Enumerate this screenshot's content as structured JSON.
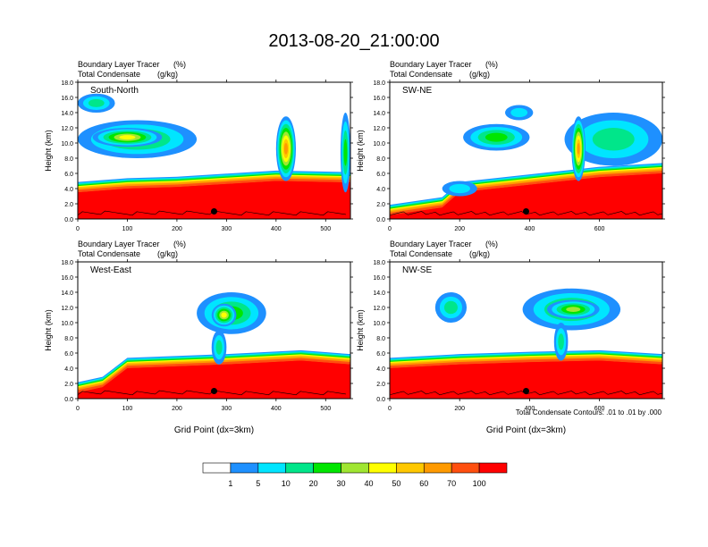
{
  "figure": {
    "title": "2013-08-20_21:00:00",
    "contour_note": "Total Condensate Contours: .01 to .01 by .000",
    "bottom_xlabel": "Grid Point (dx=3km)"
  },
  "colorbar": {
    "colors": [
      "#ffffff",
      "#1e90ff",
      "#00e5ff",
      "#00e68a",
      "#00e600",
      "#a0e632",
      "#ffff00",
      "#ffc800",
      "#ff9a00",
      "#ff4f0f",
      "#ff0000"
    ],
    "labels": [
      "1",
      "5",
      "10",
      "20",
      "30",
      "40",
      "50",
      "60",
      "70",
      "100"
    ]
  },
  "chart_data": [
    {
      "type": "heatmap",
      "panel_label": "South-North",
      "title_left_1": "Boundary Layer Tracer",
      "title_unit_1": "(%)",
      "title_left_2": "Total Condensate",
      "title_unit_2": "(g/kg)",
      "ylabel": "Height (km)",
      "xlabel": "",
      "xlim": [
        0,
        550
      ],
      "ylim": [
        0,
        18
      ],
      "xticks": [
        0,
        100,
        200,
        300,
        400,
        500
      ],
      "yticks": [
        "0.0",
        "2.0",
        "4.0",
        "6.0",
        "8.0",
        "10.0",
        "12.0",
        "14.0",
        "16.0",
        "18.0"
      ],
      "marker_x": 275,
      "marker_y": 1.0,
      "pbl_top": [
        [
          0,
          3.5
        ],
        [
          100,
          4.0
        ],
        [
          200,
          4.2
        ],
        [
          300,
          4.6
        ],
        [
          400,
          5.0
        ],
        [
          550,
          4.8
        ]
      ],
      "clouds": [
        {
          "x0": 0,
          "x1": 75,
          "y0": 14.0,
          "y1": 16.5,
          "level": 3
        },
        {
          "x0": 0,
          "x1": 240,
          "y0": 8.0,
          "y1": 13.0,
          "level": 4
        },
        {
          "x0": 30,
          "x1": 170,
          "y0": 9.5,
          "y1": 12.0,
          "level": 6
        },
        {
          "x0": 400,
          "x1": 440,
          "y0": 5.0,
          "y1": 13.5,
          "level": 8
        },
        {
          "x0": 530,
          "x1": 550,
          "y0": 3.5,
          "y1": 14.0,
          "level": 4
        }
      ]
    },
    {
      "type": "heatmap",
      "panel_label": "SW-NE",
      "title_left_1": "Boundary Layer Tracer",
      "title_unit_1": "(%)",
      "title_left_2": "Total Condensate",
      "title_unit_2": "(g/kg)",
      "ylabel": "Height (km)",
      "xlabel": "",
      "xlim": [
        0,
        780
      ],
      "ylim": [
        0,
        18
      ],
      "xticks": [
        0,
        200,
        400,
        600
      ],
      "yticks": [
        "0.0",
        "2.0",
        "4.0",
        "6.0",
        "8.0",
        "10.0",
        "12.0",
        "14.0",
        "16.0",
        "18.0"
      ],
      "marker_x": 390,
      "marker_y": 1.0,
      "pbl_top": [
        [
          0,
          0.5
        ],
        [
          150,
          1.5
        ],
        [
          200,
          3.5
        ],
        [
          400,
          4.5
        ],
        [
          600,
          5.5
        ],
        [
          780,
          6.0
        ]
      ],
      "clouds": [
        {
          "x0": 210,
          "x1": 400,
          "y0": 9.0,
          "y1": 12.5,
          "level": 4
        },
        {
          "x0": 330,
          "x1": 410,
          "y0": 13.0,
          "y1": 15.0,
          "level": 2
        },
        {
          "x0": 500,
          "x1": 780,
          "y0": 7.0,
          "y1": 14.0,
          "level": 3
        },
        {
          "x0": 520,
          "x1": 560,
          "y0": 5.0,
          "y1": 13.5,
          "level": 8
        },
        {
          "x0": 150,
          "x1": 250,
          "y0": 3.0,
          "y1": 5.0,
          "level": 2
        }
      ]
    },
    {
      "type": "heatmap",
      "panel_label": "West-East",
      "title_left_1": "Boundary Layer Tracer",
      "title_unit_1": "(%)",
      "title_left_2": "Total Condensate",
      "title_unit_2": "(g/kg)",
      "ylabel": "Height (km)",
      "xlabel": "Grid Point (dx=3km)",
      "xlim": [
        0,
        550
      ],
      "ylim": [
        0,
        18
      ],
      "xticks": [
        0,
        100,
        200,
        300,
        400,
        500
      ],
      "yticks": [
        "0.0",
        "2.0",
        "4.0",
        "6.0",
        "8.0",
        "10.0",
        "12.0",
        "14.0",
        "16.0",
        "18.0"
      ],
      "marker_x": 275,
      "marker_y": 1.0,
      "pbl_top": [
        [
          0,
          0.8
        ],
        [
          50,
          1.5
        ],
        [
          100,
          4.0
        ],
        [
          300,
          4.5
        ],
        [
          450,
          5.0
        ],
        [
          550,
          4.5
        ]
      ],
      "clouds": [
        {
          "x0": 240,
          "x1": 380,
          "y0": 8.5,
          "y1": 14.0,
          "level": 4
        },
        {
          "x0": 270,
          "x1": 320,
          "y0": 9.5,
          "y1": 12.5,
          "level": 6
        },
        {
          "x0": 270,
          "x1": 300,
          "y0": 4.5,
          "y1": 9.0,
          "level": 3
        }
      ]
    },
    {
      "type": "heatmap",
      "panel_label": "NW-SE",
      "title_left_1": "Boundary Layer Tracer",
      "title_unit_1": "(%)",
      "title_left_2": "Total Condensate",
      "title_unit_2": "(g/kg)",
      "ylabel": "Height (km)",
      "xlabel": "Grid Point (dx=3km)",
      "xlim": [
        0,
        780
      ],
      "ylim": [
        0,
        18
      ],
      "xticks": [
        0,
        200,
        400,
        600
      ],
      "yticks": [
        "0.0",
        "2.0",
        "4.0",
        "6.0",
        "8.0",
        "10.0",
        "12.0",
        "14.0",
        "16.0",
        "18.0"
      ],
      "marker_x": 390,
      "marker_y": 1.0,
      "pbl_top": [
        [
          0,
          4.0
        ],
        [
          200,
          4.5
        ],
        [
          400,
          4.8
        ],
        [
          600,
          5.0
        ],
        [
          780,
          4.5
        ]
      ],
      "clouds": [
        {
          "x0": 130,
          "x1": 220,
          "y0": 10.0,
          "y1": 14.0,
          "level": 3
        },
        {
          "x0": 380,
          "x1": 660,
          "y0": 9.0,
          "y1": 14.5,
          "level": 4
        },
        {
          "x0": 450,
          "x1": 600,
          "y0": 10.5,
          "y1": 13.0,
          "level": 5
        },
        {
          "x0": 470,
          "x1": 510,
          "y0": 5.0,
          "y1": 10.0,
          "level": 3
        }
      ]
    }
  ]
}
